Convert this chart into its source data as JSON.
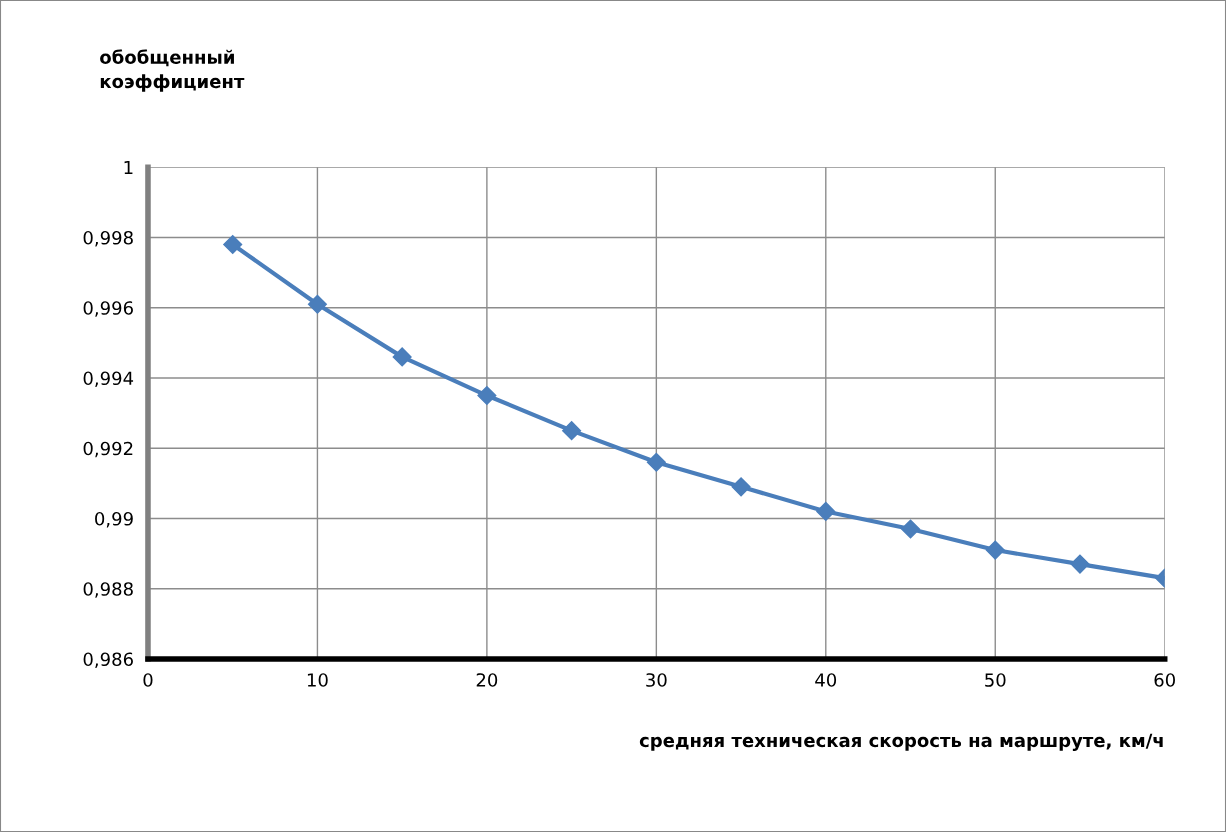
{
  "chart_data": {
    "type": "line",
    "ylabel": "обобщенный\nкоэффициент",
    "xlabel": "средняя техническая скорость на маршруте, км/ч",
    "x": [
      5,
      10,
      15,
      20,
      25,
      30,
      35,
      40,
      45,
      50,
      55,
      60
    ],
    "series": [
      {
        "color": "#4a7ebb",
        "values": [
          0.9978,
          0.9961,
          0.9946,
          0.9935,
          0.9925,
          0.9916,
          0.9909,
          0.9902,
          0.9897,
          0.9891,
          0.9887,
          0.9883
        ]
      }
    ],
    "xlim": [
      0,
      60
    ],
    "xticks": [
      0,
      10,
      20,
      30,
      40,
      50,
      60
    ],
    "ylim": [
      0.986,
      1
    ],
    "yticks": [
      {
        "value": 0.986,
        "label": "0,986"
      },
      {
        "value": 0.988,
        "label": "0,988"
      },
      {
        "value": 0.99,
        "label": "0,99"
      },
      {
        "value": 0.992,
        "label": "0,992"
      },
      {
        "value": 0.994,
        "label": "0,994"
      },
      {
        "value": 0.996,
        "label": "0,996"
      },
      {
        "value": 0.998,
        "label": "0,998"
      },
      1
    ],
    "grid": true,
    "marker": "diamond",
    "line_style": "solid"
  }
}
